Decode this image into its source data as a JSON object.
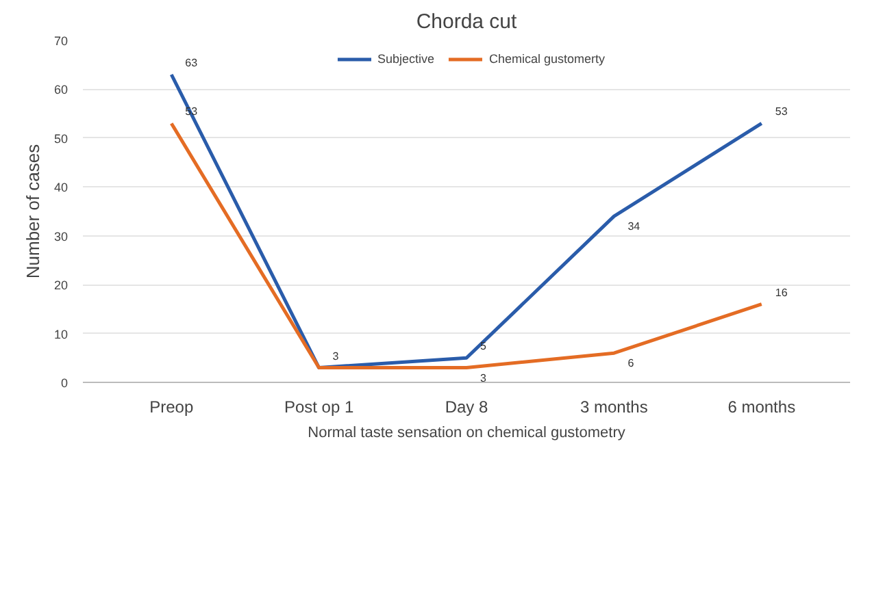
{
  "chart_data": {
    "type": "line",
    "title": "Chorda cut",
    "ylabel": "Number of cases",
    "categories": [
      "Preop",
      "Post op 1",
      "Day 8",
      "3 months",
      "6 months"
    ],
    "series": [
      {
        "name": "Subjective",
        "color": "#2a5caa",
        "values": [
          63,
          3,
          5,
          34,
          53
        ],
        "value_labels": [
          "63",
          "3",
          "5",
          "34",
          "53"
        ]
      },
      {
        "name": "Chemical gustomerty",
        "color": "#e46c24",
        "values": [
          53,
          3,
          3,
          6,
          16
        ],
        "value_labels": [
          "53",
          null,
          "3",
          "6",
          "16"
        ]
      }
    ],
    "ylim": [
      0,
      70
    ],
    "yticks": [
      0,
      10,
      20,
      30,
      40,
      50,
      60,
      70
    ],
    "grid": "y",
    "legend": "top",
    "marker": "none",
    "line_style": "solid",
    "annotations": [
      "Normal taste sensation on chemical gustometry"
    ]
  }
}
